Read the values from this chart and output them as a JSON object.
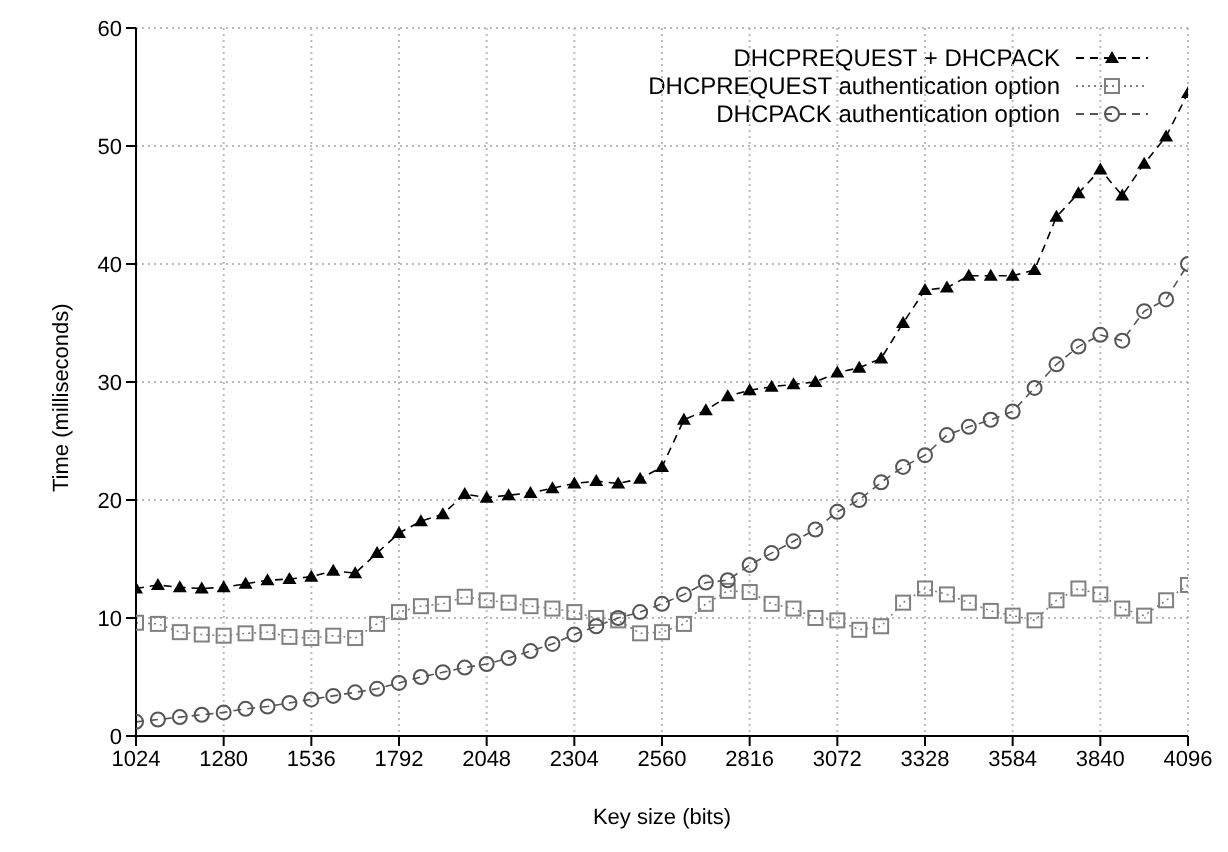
{
  "chart_data": {
    "type": "line",
    "xlabel": "Key size (bits)",
    "ylabel": "Time (milliseconds)",
    "x": [
      1024,
      1088,
      1152,
      1216,
      1280,
      1344,
      1408,
      1472,
      1536,
      1600,
      1664,
      1728,
      1792,
      1856,
      1920,
      1984,
      2048,
      2112,
      2176,
      2240,
      2304,
      2368,
      2432,
      2496,
      2560,
      2624,
      2688,
      2752,
      2816,
      2880,
      2944,
      3008,
      3072,
      3136,
      3200,
      3264,
      3328,
      3392,
      3456,
      3520,
      3584,
      3648,
      3712,
      3776,
      3840,
      3904,
      3968,
      4032,
      4096
    ],
    "series": [
      {
        "name": "DHCPREQUEST + DHCPACK",
        "color": "#000000",
        "marker": "triangle",
        "line_style": "dashed",
        "values": [
          12.5,
          12.8,
          12.6,
          12.5,
          12.6,
          12.9,
          13.2,
          13.3,
          13.5,
          14.0,
          13.8,
          15.5,
          17.2,
          18.2,
          18.8,
          20.5,
          20.2,
          20.4,
          20.6,
          21.0,
          21.4,
          21.6,
          21.4,
          21.8,
          22.8,
          26.8,
          27.6,
          28.8,
          29.3,
          29.6,
          29.8,
          30.0,
          30.8,
          31.2,
          32.0,
          35.0,
          37.8,
          38.0,
          39.0,
          39.0,
          39.0,
          39.5,
          44.0,
          46.0,
          48.0,
          45.8,
          48.5,
          50.8,
          54.5
        ]
      },
      {
        "name": "DHCPREQUEST authentication option",
        "color": "#808080",
        "marker": "square",
        "line_style": "dotted",
        "values": [
          9.6,
          9.5,
          8.8,
          8.6,
          8.5,
          8.7,
          8.8,
          8.4,
          8.3,
          8.5,
          8.3,
          9.5,
          10.5,
          11.0,
          11.2,
          11.8,
          11.5,
          11.3,
          11.0,
          10.8,
          10.5,
          10.0,
          9.8,
          8.7,
          8.8,
          9.5,
          11.2,
          12.3,
          12.2,
          11.2,
          10.8,
          10.0,
          9.8,
          9.0,
          9.3,
          11.3,
          12.5,
          12.0,
          11.3,
          10.6,
          10.2,
          9.8,
          11.5,
          12.5,
          12.0,
          10.8,
          10.2,
          11.5,
          12.8
        ]
      },
      {
        "name": "DHCPACK authentication option",
        "color": "#555555",
        "marker": "circle",
        "line_style": "dashed",
        "values": [
          1.2,
          1.4,
          1.6,
          1.8,
          2.0,
          2.3,
          2.5,
          2.8,
          3.1,
          3.4,
          3.7,
          4.0,
          4.5,
          5.0,
          5.4,
          5.8,
          6.1,
          6.6,
          7.2,
          7.8,
          8.6,
          9.3,
          10.0,
          10.5,
          11.2,
          12.0,
          13.0,
          13.2,
          14.5,
          15.5,
          16.5,
          17.5,
          19.0,
          20.0,
          21.5,
          22.8,
          23.8,
          25.5,
          26.2,
          26.8,
          27.5,
          29.5,
          31.5,
          33.0,
          34.0,
          33.5,
          36.0,
          37.0,
          40.0
        ]
      }
    ],
    "xlim": [
      1024,
      4096
    ],
    "xticks": [
      1024,
      1280,
      1536,
      1792,
      2048,
      2304,
      2560,
      2816,
      3072,
      3328,
      3584,
      3840,
      4096
    ],
    "ylim": [
      0,
      60
    ],
    "yticks": [
      0,
      10,
      20,
      30,
      40,
      50,
      60
    ],
    "grid": true,
    "legend": "top right"
  }
}
